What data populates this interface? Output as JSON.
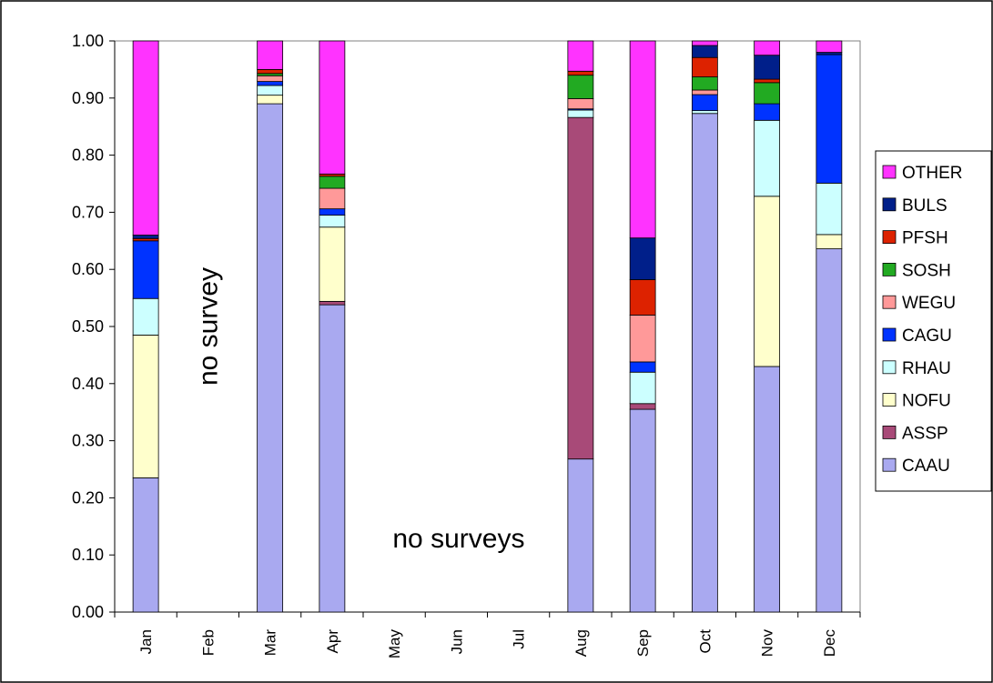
{
  "chart_data": {
    "type": "bar",
    "stacked": true,
    "ylim": [
      0,
      1
    ],
    "yticks": [
      "0.00",
      "0.10",
      "0.20",
      "0.30",
      "0.40",
      "0.50",
      "0.60",
      "0.70",
      "0.80",
      "0.90",
      "1.00"
    ],
    "grid": false,
    "legend_position": "right",
    "categories": [
      "Jan",
      "Feb",
      "Mar",
      "Apr",
      "May",
      "Jun",
      "Jul",
      "Aug",
      "Sep",
      "Oct",
      "Nov",
      "Dec"
    ],
    "series": [
      {
        "name": "CAAU",
        "color": "#A9A9F0",
        "values": [
          0.235,
          0,
          0.89,
          0.538,
          0,
          0,
          0,
          0.268,
          0.355,
          0.873,
          0.43,
          0.636
        ]
      },
      {
        "name": "ASSP",
        "color": "#A84A78",
        "values": [
          0.0,
          0,
          0.0,
          0.006,
          0,
          0,
          0,
          0.598,
          0.01,
          0.0,
          0.0,
          0.0
        ]
      },
      {
        "name": "NOFU",
        "color": "#FFFFCC",
        "values": [
          0.25,
          0,
          0.015,
          0.13,
          0,
          0,
          0,
          0.0,
          0.0,
          0.0,
          0.298,
          0.025
        ]
      },
      {
        "name": "RHAU",
        "color": "#CCFFFF",
        "values": [
          0.064,
          0,
          0.017,
          0.021,
          0,
          0,
          0,
          0.013,
          0.055,
          0.005,
          0.133,
          0.09
        ]
      },
      {
        "name": "CAGU",
        "color": "#0033FF",
        "values": [
          0.101,
          0,
          0.007,
          0.011,
          0,
          0,
          0,
          0.002,
          0.018,
          0.028,
          0.029,
          0.225
        ]
      },
      {
        "name": "WEGU",
        "color": "#FF9999",
        "values": [
          0.0,
          0,
          0.01,
          0.036,
          0,
          0,
          0,
          0.018,
          0.082,
          0.008,
          0.0,
          0.0
        ]
      },
      {
        "name": "SOSH",
        "color": "#22AA22",
        "values": [
          0.0,
          0,
          0.004,
          0.021,
          0,
          0,
          0,
          0.041,
          0.0,
          0.023,
          0.037,
          0.0
        ]
      },
      {
        "name": "PFSH",
        "color": "#DD2200",
        "values": [
          0.004,
          0,
          0.007,
          0.004,
          0,
          0,
          0,
          0.007,
          0.062,
          0.034,
          0.006,
          0.0
        ]
      },
      {
        "name": "BULS",
        "color": "#001F8A",
        "values": [
          0.006,
          0,
          0.0,
          0.0,
          0,
          0,
          0,
          0.0,
          0.073,
          0.021,
          0.042,
          0.004
        ]
      },
      {
        "name": "OTHER",
        "color": "#FF33FF",
        "values": [
          0.34,
          0,
          0.05,
          0.233,
          0,
          0,
          0,
          0.053,
          0.345,
          0.008,
          0.025,
          0.02
        ]
      }
    ],
    "annotations": [
      {
        "text": "no survey",
        "category": "Feb",
        "y": 0.5
      },
      {
        "text": "no surveys",
        "category": "Jun",
        "y": 0.1
      }
    ]
  }
}
